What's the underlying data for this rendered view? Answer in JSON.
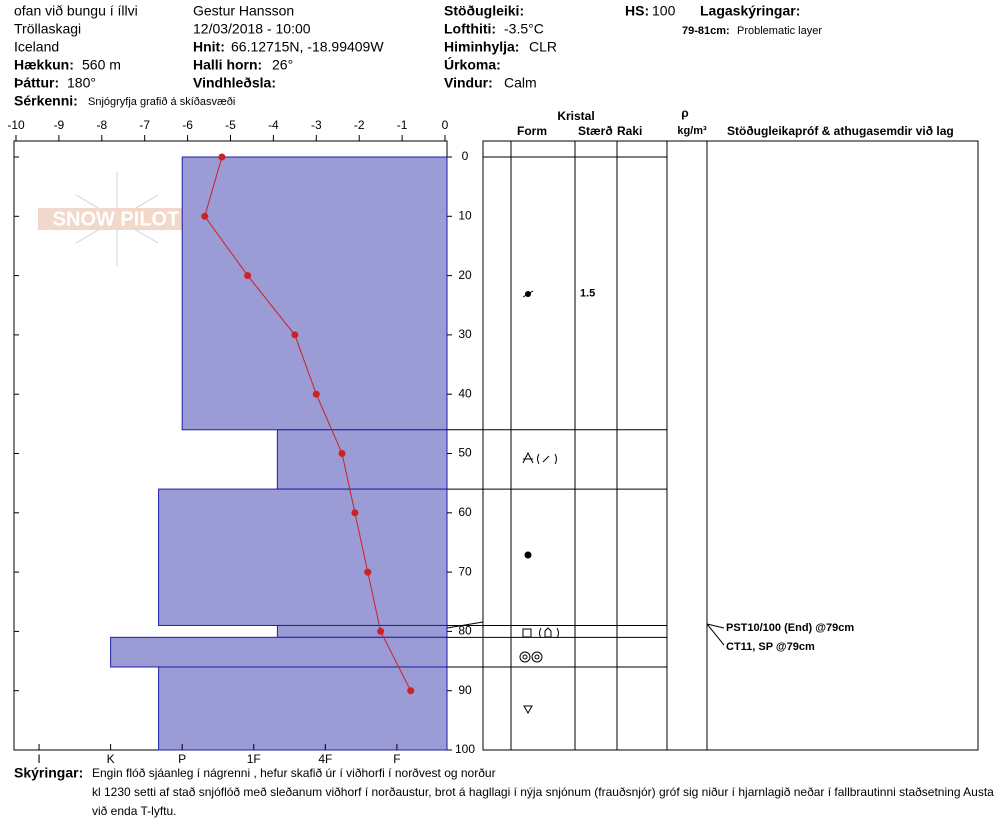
{
  "header": {
    "location": "ofan við bungu í íllvi",
    "region": "Tröllaskagi",
    "country": "Iceland",
    "elevation_label": "Hækkun:",
    "elevation": "560 m",
    "aspect_label": "Þáttur:",
    "aspect": "180°",
    "features_label": "Sérkenni:",
    "features": "Snjógryfja grafið á skíðasvæði",
    "observer": "Gestur Hansson",
    "datetime": "12/03/2018 - 10:00",
    "coords_label": "Hnit:",
    "coords": "66.12715N, -18.99409W",
    "slope_label": "Halli horn:",
    "slope": "26°",
    "wind_loading_label": "Vindhleðsla:",
    "stability_label": "Stöðugleiki:",
    "air_temp_label": "Lofthiti:",
    "air_temp": "-3.5°C",
    "sky_label": "Himinhylja:",
    "sky": "CLR",
    "precip_label": "Úrkoma:",
    "wind_label": "Vindur:",
    "wind": "Calm",
    "hs_label": "HS:",
    "hs": 100,
    "layer_notes_label": "Lagaskýringar:",
    "layer_note_range": "79-81cm:",
    "layer_note": "Problematic layer"
  },
  "logo": "SNOW PILOT",
  "chart_data": {
    "type": "snowpit",
    "ylim": [
      0,
      100
    ],
    "yticks": [
      0,
      10,
      20,
      30,
      40,
      50,
      60,
      70,
      80,
      90,
      100
    ],
    "temp_xlim": [
      -10,
      0
    ],
    "temp_xticks": [
      -10,
      -9,
      -8,
      -7,
      -6,
      -5,
      -4,
      -3,
      -2,
      -1,
      0
    ],
    "hardness_xlim": [
      0.3,
      6.35
    ],
    "hardness_ticks": [
      {
        "value": 6,
        "label": "I"
      },
      {
        "value": 5,
        "label": "K"
      },
      {
        "value": 4,
        "label": "P"
      },
      {
        "value": 3,
        "label": "1F"
      },
      {
        "value": 2,
        "label": "4F"
      },
      {
        "value": 1,
        "label": "F"
      }
    ],
    "layers": {
      "top": [
        0,
        46,
        56,
        79,
        81,
        86
      ],
      "bottom": [
        46,
        56,
        79,
        81,
        86,
        100
      ],
      "hardness": [
        4,
        2.67,
        4.33,
        2.67,
        5,
        4.33
      ],
      "size": [
        1.5,
        null,
        null,
        null,
        null,
        null
      ]
    },
    "hardness_color": "#9b9bd6",
    "temp_color": "#cc2222",
    "temperature": {
      "depth": [
        0,
        10,
        20,
        30,
        40,
        50,
        60,
        70,
        80,
        90
      ],
      "values": [
        -5.2,
        -5.6,
        -4.6,
        -3.5,
        -3.0,
        -2.4,
        -2.1,
        -1.8,
        -1.5,
        -0.8
      ]
    },
    "table_headers": {
      "crystal": "Kristal",
      "form": "Form",
      "size": "Stærð",
      "wetness": "Raki",
      "rho": "ρ",
      "density_unit": "kg/m³",
      "tests": "Stöðugleikapróf & athugasemdir við lag"
    },
    "tests": [
      "PST10/100 (End) @79cm",
      "CT11, SP @79cm"
    ]
  },
  "footer": {
    "label": "Skýringar:",
    "lines": [
      "Engin flóð sjáanleg í nágrenni , hefur skafið úr í viðhorfi í norðvest og norður",
      "kl 1230 setti af stað snjóflóð með sleðanum viðhorf í norðaustur, brot á hagllagi í nýja snjónum (frauðsnjór) gróf sig niður í hjarnlagið neðar í fallbrautinni staðsetning Austan",
      "við enda T-lyftu."
    ]
  }
}
